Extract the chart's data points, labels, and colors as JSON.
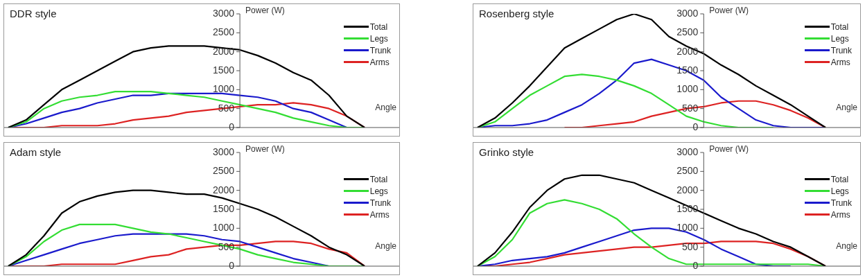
{
  "chart_data": [
    {
      "type": "line",
      "title": "DDR style",
      "xlabel": "Angle",
      "ylabel": "Power (W)",
      "categories": [
        null,
        null,
        null,
        null,
        null,
        null,
        null,
        null,
        null,
        null,
        null,
        null,
        null,
        null,
        null,
        null,
        null,
        null,
        null,
        null,
        null
      ],
      "ylim": [
        0,
        3000
      ],
      "yticks": [
        0,
        500,
        1000,
        1500,
        2000,
        2500,
        3000
      ],
      "tick_labels": "y",
      "legend": "top right",
      "marker": "none",
      "line_style": "solid",
      "series": [
        {
          "name": "Total",
          "color": "#000000",
          "values": [
            0,
            200,
            600,
            1000,
            1250,
            1500,
            1750,
            2000,
            2100,
            2150,
            2150,
            2150,
            2100,
            2050,
            1900,
            1700,
            1450,
            1250,
            850,
            300,
            0
          ]
        },
        {
          "name": "Legs",
          "color": "#33dd33",
          "values": [
            0,
            150,
            500,
            700,
            800,
            850,
            950,
            950,
            950,
            900,
            850,
            800,
            700,
            600,
            500,
            400,
            250,
            150,
            50,
            0,
            0
          ]
        },
        {
          "name": "Trunk",
          "color": "#1a1acc",
          "values": [
            0,
            100,
            250,
            400,
            500,
            650,
            750,
            850,
            850,
            900,
            900,
            900,
            900,
            850,
            800,
            700,
            500,
            400,
            200,
            0,
            0
          ]
        },
        {
          "name": "Arms",
          "color": "#dd2222",
          "values": [
            0,
            0,
            0,
            50,
            50,
            50,
            100,
            200,
            250,
            300,
            400,
            450,
            500,
            550,
            600,
            600,
            650,
            600,
            500,
            300,
            0
          ]
        }
      ]
    },
    {
      "type": "line",
      "title": "Rosenberg style",
      "xlabel": "Angle",
      "ylabel": "Power (W)",
      "categories": [
        null,
        null,
        null,
        null,
        null,
        null,
        null,
        null,
        null,
        null,
        null,
        null,
        null,
        null,
        null,
        null,
        null,
        null,
        null,
        null,
        null
      ],
      "ylim": [
        0,
        3000
      ],
      "yticks": [
        0,
        500,
        1000,
        1500,
        2000,
        2500,
        3000
      ],
      "tick_labels": "y",
      "legend": "top right",
      "marker": "none",
      "line_style": "solid",
      "series": [
        {
          "name": "Total",
          "color": "#000000",
          "values": [
            0,
            250,
            650,
            1100,
            1600,
            2100,
            2350,
            2600,
            2850,
            3000,
            2850,
            2400,
            2150,
            1950,
            1650,
            1400,
            1100,
            850,
            600,
            300,
            0
          ]
        },
        {
          "name": "Legs",
          "color": "#33dd33",
          "values": [
            0,
            150,
            500,
            850,
            1100,
            1350,
            1400,
            1350,
            1250,
            1100,
            900,
            600,
            300,
            150,
            50,
            0,
            0,
            0,
            null,
            null,
            null
          ]
        },
        {
          "name": "Trunk",
          "color": "#1a1acc",
          "values": [
            0,
            50,
            50,
            100,
            200,
            400,
            600,
            900,
            1250,
            1700,
            1800,
            1650,
            1500,
            1250,
            800,
            500,
            200,
            50,
            0,
            0,
            0
          ]
        },
        {
          "name": "Arms",
          "color": "#dd2222",
          "values": [
            null,
            null,
            null,
            null,
            null,
            0,
            0,
            50,
            100,
            150,
            300,
            400,
            500,
            550,
            650,
            700,
            700,
            600,
            450,
            250,
            0
          ]
        }
      ]
    },
    {
      "type": "line",
      "title": "Adam style",
      "xlabel": "Angle",
      "ylabel": "Power (W)",
      "categories": [
        null,
        null,
        null,
        null,
        null,
        null,
        null,
        null,
        null,
        null,
        null,
        null,
        null,
        null,
        null,
        null,
        null,
        null,
        null,
        null,
        null
      ],
      "ylim": [
        0,
        3000
      ],
      "yticks": [
        0,
        500,
        1000,
        1500,
        2000,
        2500,
        3000
      ],
      "tick_labels": "y",
      "legend": "top right",
      "marker": "none",
      "line_style": "solid",
      "series": [
        {
          "name": "Total",
          "color": "#000000",
          "values": [
            0,
            300,
            800,
            1400,
            1700,
            1850,
            1950,
            2000,
            2000,
            1950,
            1900,
            1900,
            1800,
            1650,
            1500,
            1300,
            1050,
            800,
            500,
            300,
            0
          ]
        },
        {
          "name": "Legs",
          "color": "#33dd33",
          "values": [
            0,
            250,
            650,
            950,
            1100,
            1100,
            1100,
            1000,
            900,
            850,
            750,
            650,
            550,
            450,
            300,
            200,
            100,
            50,
            0,
            0,
            0
          ]
        },
        {
          "name": "Trunk",
          "color": "#1a1acc",
          "values": [
            0,
            150,
            300,
            450,
            600,
            700,
            800,
            850,
            850,
            850,
            850,
            800,
            700,
            650,
            500,
            350,
            200,
            100,
            0,
            0,
            0
          ]
        },
        {
          "name": "Arms",
          "color": "#dd2222",
          "values": [
            0,
            0,
            0,
            50,
            50,
            50,
            50,
            150,
            250,
            300,
            450,
            500,
            550,
            550,
            600,
            650,
            650,
            600,
            450,
            350,
            0
          ]
        }
      ]
    },
    {
      "type": "line",
      "title": "Grinko style",
      "xlabel": "Angle",
      "ylabel": "Power (W)",
      "categories": [
        null,
        null,
        null,
        null,
        null,
        null,
        null,
        null,
        null,
        null,
        null,
        null,
        null,
        null,
        null,
        null,
        null,
        null,
        null,
        null,
        null
      ],
      "ylim": [
        0,
        3000
      ],
      "yticks": [
        0,
        500,
        1000,
        1500,
        2000,
        2500,
        3000
      ],
      "tick_labels": "y",
      "legend": "top right",
      "marker": "none",
      "line_style": "solid",
      "series": [
        {
          "name": "Total",
          "color": "#000000",
          "values": [
            0,
            350,
            900,
            1550,
            2000,
            2300,
            2400,
            2400,
            2300,
            2200,
            2000,
            1800,
            1600,
            1400,
            1200,
            1000,
            850,
            650,
            500,
            250,
            0
          ]
        },
        {
          "name": "Legs",
          "color": "#33dd33",
          "values": [
            0,
            250,
            700,
            1400,
            1650,
            1750,
            1650,
            1500,
            1250,
            850,
            500,
            200,
            50,
            50,
            50,
            50,
            50,
            50,
            50,
            50,
            0
          ]
        },
        {
          "name": "Trunk",
          "color": "#1a1acc",
          "values": [
            0,
            50,
            150,
            200,
            250,
            350,
            500,
            650,
            800,
            950,
            1000,
            1000,
            900,
            700,
            450,
            250,
            50,
            0,
            0,
            null,
            null
          ]
        },
        {
          "name": "Arms",
          "color": "#dd2222",
          "values": [
            0,
            0,
            50,
            100,
            200,
            300,
            350,
            400,
            450,
            500,
            500,
            550,
            600,
            600,
            650,
            650,
            650,
            600,
            450,
            250,
            0
          ]
        }
      ]
    }
  ]
}
